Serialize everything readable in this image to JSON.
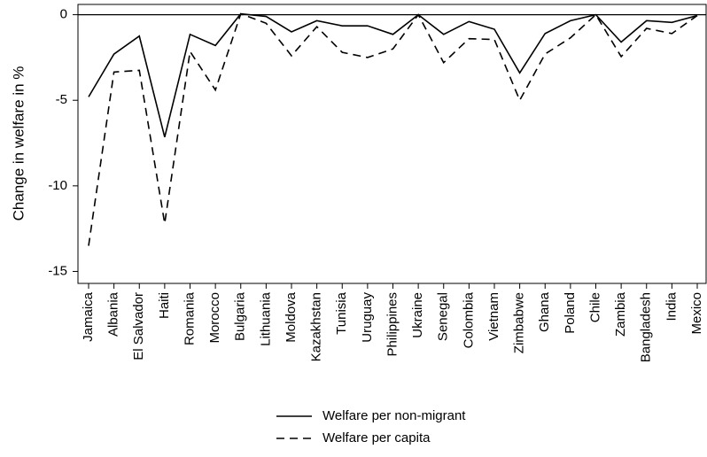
{
  "chart_data": {
    "type": "line",
    "y_label": "Change in welfare in %",
    "categories": [
      "Jamaica",
      "Albania",
      "El Salvador",
      "Haiti",
      "Romania",
      "Morocco",
      "Bulgaria",
      "Lithuania",
      "Moldova",
      "Kazakhstan",
      "Tunisia",
      "Uruguay",
      "Philippines",
      "Ukraine",
      "Senegal",
      "Colombia",
      "Vietnam",
      "Zimbabwe",
      "Ghana",
      "Poland",
      "Chile",
      "Zambia",
      "Bangladesh",
      "India",
      "Mexico"
    ],
    "series": [
      {
        "name": "Welfare per non-migrant",
        "color": "#000000",
        "dash": "solid",
        "values": [
          -4.8,
          -2.3,
          -1.25,
          -7.15,
          -1.15,
          -1.8,
          0.05,
          -0.1,
          -1.0,
          -0.35,
          -0.65,
          -0.65,
          -1.15,
          0,
          -1.15,
          -0.4,
          -0.85,
          -3.4,
          -1.1,
          -0.35,
          0,
          -1.6,
          -0.35,
          -0.45,
          -0.05
        ]
      },
      {
        "name": "Welfare per capita",
        "color": "#000000",
        "dash": "dashed",
        "values": [
          -13.5,
          -3.35,
          -3.25,
          -12.2,
          -2.15,
          -4.4,
          0.05,
          -0.5,
          -2.4,
          -0.7,
          -2.2,
          -2.5,
          -2.0,
          0,
          -2.8,
          -1.4,
          -1.45,
          -5.0,
          -2.3,
          -1.35,
          0,
          -2.45,
          -0.8,
          -1.1,
          -0.05
        ]
      }
    ],
    "ylim": [
      -15.7,
      0.6
    ],
    "yticks": [
      0,
      -5,
      -10,
      -15
    ],
    "reference_line": 0,
    "grid": false,
    "legend": "bottom"
  }
}
